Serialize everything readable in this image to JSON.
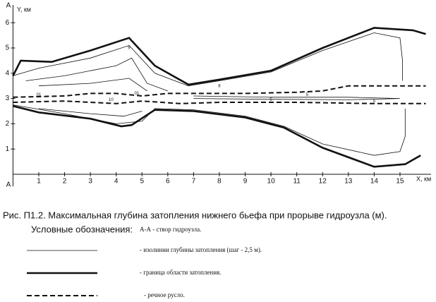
{
  "chart_data": {
    "type": "line",
    "section_marks": [
      "A",
      "A"
    ],
    "x_label": "X, км",
    "y_label": "Y, км",
    "xlim": [
      0,
      16.2
    ],
    "ylim": [
      0,
      6.7
    ],
    "xticks": [
      1,
      2,
      3,
      4,
      5,
      6,
      7,
      8,
      9,
      10,
      11,
      12,
      13,
      14,
      15
    ],
    "yticks": [
      1,
      2,
      3,
      4,
      5,
      6
    ],
    "color": "#111",
    "series": [
      {
        "style": "boundary",
        "x": [
          0,
          0.3,
          1.5,
          3,
          4.5,
          5.5,
          6.8,
          8,
          10,
          12,
          14,
          15.5,
          16
        ],
        "values": [
          3.9,
          4.5,
          4.45,
          4.9,
          5.4,
          4.3,
          3.55,
          3.75,
          4.1,
          5.0,
          5.8,
          5.7,
          5.55
        ]
      },
      {
        "style": "boundary",
        "x": [
          0,
          1,
          3,
          4.2,
          4.6,
          5.5,
          7,
          9,
          10.5,
          12,
          14,
          15.2,
          15.8
        ],
        "values": [
          2.7,
          2.45,
          2.2,
          1.9,
          1.95,
          2.55,
          2.5,
          2.25,
          1.85,
          1.05,
          0.3,
          0.4,
          0.75
        ]
      },
      {
        "style": "river",
        "x": [
          0,
          2,
          3,
          4,
          5,
          6,
          9,
          11,
          12,
          13,
          16
        ],
        "values": [
          3.05,
          3.1,
          3.2,
          3.2,
          3.1,
          3.2,
          3.2,
          3.25,
          3.3,
          3.5,
          3.5
        ]
      },
      {
        "style": "river",
        "x": [
          0,
          2,
          4,
          5,
          6.5,
          8,
          11,
          14,
          16
        ],
        "values": [
          2.85,
          2.9,
          2.8,
          2.9,
          2.8,
          2.85,
          2.85,
          2.8,
          2.8
        ]
      },
      {
        "style": "isoline",
        "x": [
          0,
          1,
          3,
          4.5,
          5.5,
          6.8,
          8,
          10,
          12,
          14,
          15,
          15.1,
          15.1
        ],
        "values": [
          3.9,
          4.2,
          4.6,
          5.1,
          4.0,
          3.5,
          3.7,
          4.05,
          4.9,
          5.6,
          5.4,
          4.5,
          3.7
        ]
      },
      {
        "style": "isoline",
        "x": [
          0,
          2,
          4,
          5,
          5.5,
          7,
          9,
          10.5,
          12,
          14,
          15,
          15.2,
          15.2
        ],
        "values": [
          2.75,
          2.4,
          2.0,
          2.1,
          2.6,
          2.55,
          2.3,
          1.9,
          1.2,
          0.75,
          0.9,
          1.5,
          2.6
        ]
      },
      {
        "style": "isoline",
        "x": [
          0.5,
          2,
          4,
          4.6,
          5.2,
          6
        ],
        "values": [
          3.7,
          3.9,
          4.3,
          4.6,
          3.6,
          3.3
        ]
      },
      {
        "style": "isoline",
        "x": [
          1,
          3,
          4.5,
          5.2
        ],
        "values": [
          3.5,
          3.6,
          3.8,
          3.3
        ]
      },
      {
        "style": "isoline",
        "x": [
          1,
          3,
          4.3,
          5
        ],
        "values": [
          2.6,
          2.4,
          2.3,
          2.5
        ]
      },
      {
        "style": "isoline",
        "x": [
          7,
          10,
          13,
          15,
          13,
          10,
          7
        ],
        "values": [
          3.1,
          3.05,
          3.05,
          3.0,
          2.95,
          2.97,
          3.0
        ]
      }
    ],
    "annotations": [
      {
        "text": "01",
        "x": 1,
        "y": 3.15
      },
      {
        "text": "10",
        "x": 3.8,
        "y": 2.95
      },
      {
        "text": "01",
        "x": 4.8,
        "y": 3.2
      },
      {
        "text": "9",
        "x": 4.5,
        "y": 5.0
      },
      {
        "text": "8",
        "x": 8,
        "y": 3.5
      },
      {
        "text": "5",
        "x": 11.4,
        "y": 3.15
      },
      {
        "text": "5",
        "x": 10,
        "y": 2.95
      },
      {
        "text": "5",
        "x": 14,
        "y": 2.9
      }
    ],
    "caption": "Рис. П1.2. Максимальная глубина затопления нижнего бьефа при прорыве гидроузла (м).",
    "legend_title": "Условные обозначения:",
    "section_note": "А-А - створ гидроузла.",
    "legend": [
      {
        "style": "isoline",
        "label": "- изолинии глубины затопления (шаг - 2,5  м)."
      },
      {
        "style": "boundary",
        "label": "- граница области затопления."
      },
      {
        "style": "river",
        "label": "- речное русло."
      }
    ]
  }
}
